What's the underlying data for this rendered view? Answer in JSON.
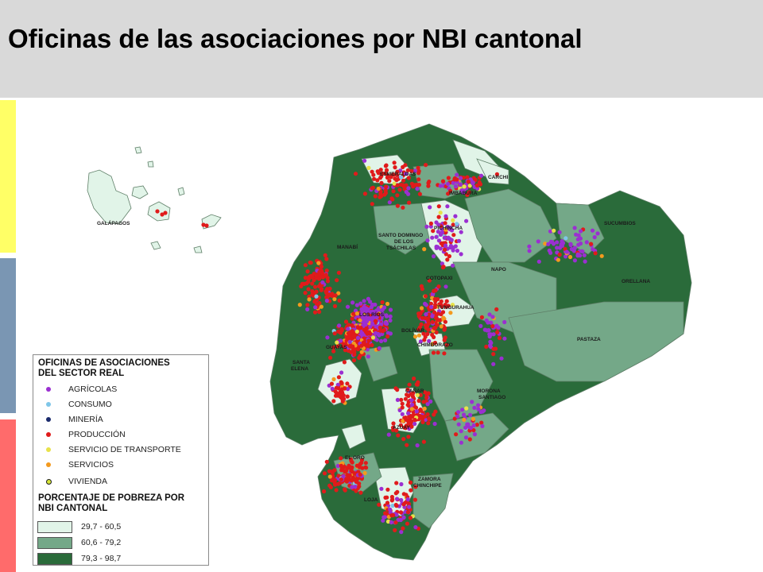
{
  "title": "Oficinas de las asociaciones por NBI cantonal",
  "colors": {
    "header_bg": "#d9d9d9",
    "bar_yellow": "#ffff66",
    "bar_blue": "#7a96b3",
    "bar_red": "#ff6b6b",
    "nbi_low": "#e1f4e8",
    "nbi_mid": "#74a888",
    "nbi_high": "#2a6b3a",
    "outline": "#5f7f68"
  },
  "map": {
    "place_labels": [
      "GALÁPAGOS",
      "ESMERALDAS",
      "CARCHI",
      "IMBABURA",
      "SUCUMBIOS",
      "PICHINCHA",
      "SANTO DOMINGO",
      "DE LOS",
      "TSÁCHILAS",
      "MANABÍ",
      "NAPO",
      "ORELLANA",
      "COTOPAXI",
      "TUNGURAHUA",
      "LOS RÍOS",
      "BOLÍVAR",
      "PASTAZA",
      "GUAYAS",
      "CHIMBORAZO",
      "SANTA",
      "ELENA",
      "CAÑAR",
      "MORONA",
      "SANTIAGO",
      "AZUAY",
      "EL ORO",
      "ZAMORA",
      "CHINCHIPE",
      "LOJA"
    ]
  },
  "legend": {
    "heading_1": [
      "OFICINAS DE ASOCIACIONES",
      "DEL SECTOR REAL"
    ],
    "categories": [
      {
        "label": "AGRÍCOLAS",
        "color": "#9b2fd1"
      },
      {
        "label": "CONSUMO",
        "color": "#7fc6e8"
      },
      {
        "label": "MINERÍA",
        "color": "#1a2a6c"
      },
      {
        "label": "PRODUCCIÓN",
        "color": "#e01b1b"
      },
      {
        "label": "SERVICIO DE TRANSPORTE",
        "color": "#e8e24a"
      },
      {
        "label": "SERVICIOS",
        "color": "#f39a1e"
      },
      {
        "label": "VIVIENDA",
        "color": "#d7e63a"
      }
    ],
    "heading_2": [
      "PORCENTAJE DE POBREZA POR",
      "NBI CANTONAL"
    ],
    "ranges": [
      {
        "label": "29,7 - 60,5",
        "color": "#e1f4e8"
      },
      {
        "label": "60,6 - 79,2",
        "color": "#74a888"
      },
      {
        "label": "79,3 - 98,7",
        "color": "#2a6b3a"
      }
    ]
  }
}
